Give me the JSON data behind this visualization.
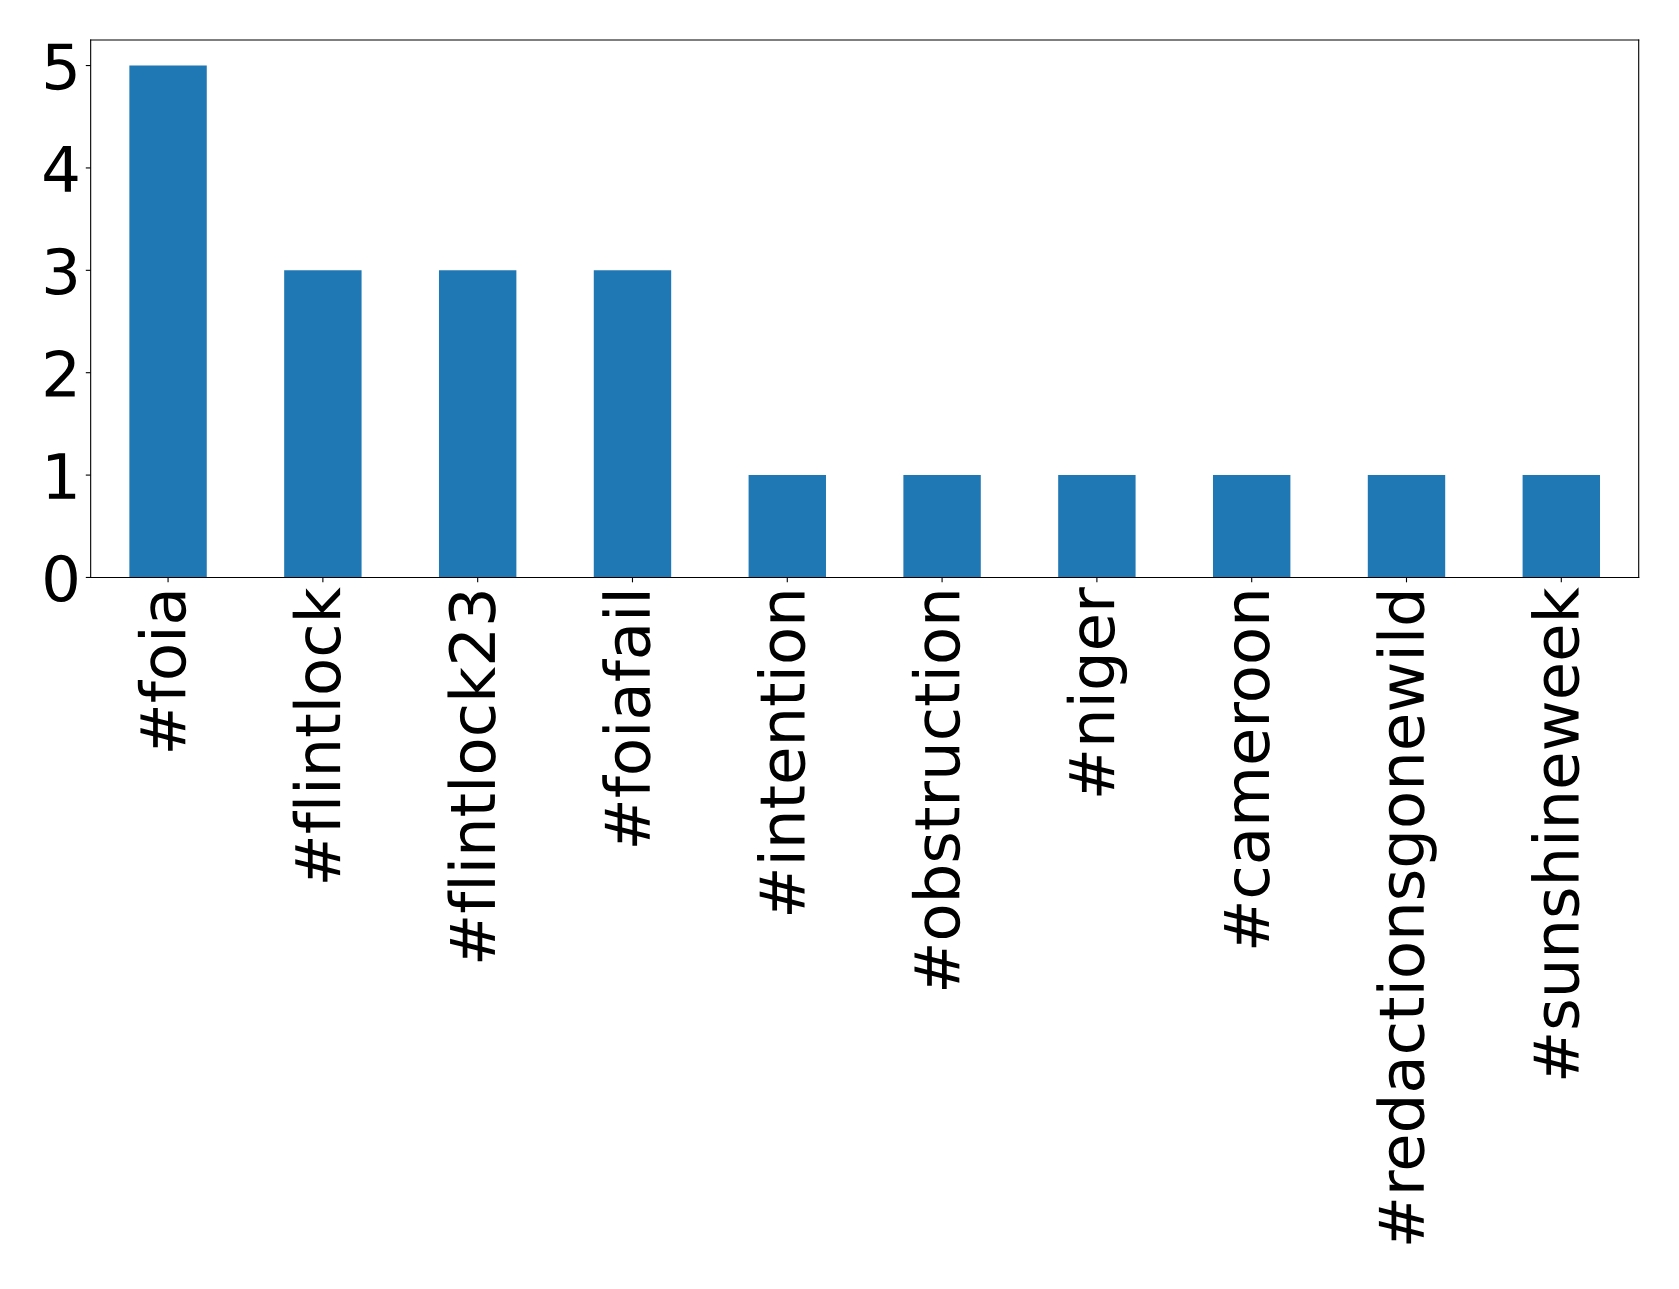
{
  "chart_data": {
    "type": "bar",
    "categories": [
      "#foia",
      "#flintlock",
      "#flintlock23",
      "#foiafail",
      "#intention",
      "#obstruction",
      "#niger",
      "#cameroon",
      "#redactionsgonewild",
      "#sunshineweek"
    ],
    "values": [
      5,
      3,
      3,
      3,
      1,
      1,
      1,
      1,
      1,
      1
    ],
    "color": "#1f77b4",
    "ylim": [
      0,
      5.25
    ],
    "yticks": [
      0,
      1,
      2,
      3,
      4,
      5
    ],
    "grid": false,
    "legend": false
  }
}
